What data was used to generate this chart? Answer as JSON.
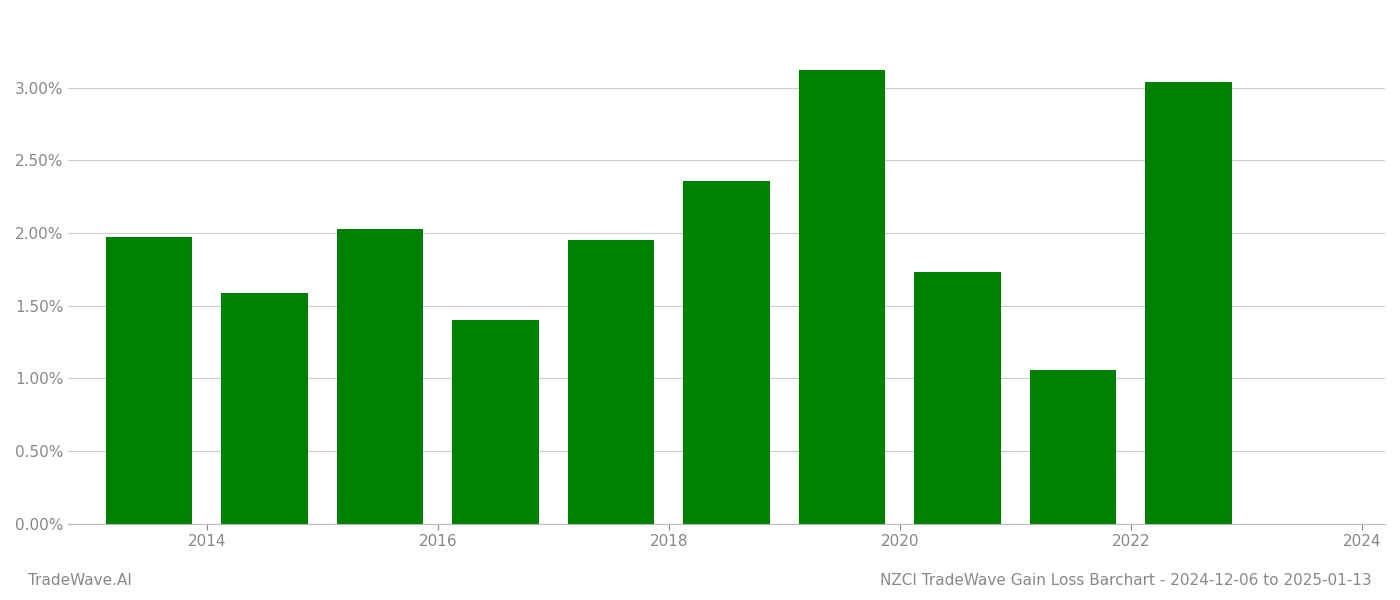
{
  "years": [
    2014,
    2015,
    2016,
    2017,
    2018,
    2019,
    2020,
    2021,
    2022,
    2023
  ],
  "values": [
    0.0197,
    0.0159,
    0.0203,
    0.014,
    0.0195,
    0.0236,
    0.0312,
    0.0173,
    0.0106,
    0.0304
  ],
  "bar_color": "#008000",
  "title": "NZCI TradeWave Gain Loss Barchart - 2024-12-06 to 2025-01-13",
  "watermark_left": "TradeWave.AI",
  "ylim_min": 0.0,
  "ylim_max": 0.035,
  "ytick_values": [
    0.0,
    0.005,
    0.01,
    0.015,
    0.02,
    0.025,
    0.03
  ],
  "xtick_positions": [
    2014.5,
    2016.5,
    2018.5,
    2020.5,
    2022.5,
    2024.5
  ],
  "xtick_labels": [
    "2014",
    "2016",
    "2018",
    "2020",
    "2022",
    "2024"
  ],
  "xlim_min": 2013.3,
  "xlim_max": 2024.7,
  "background_color": "#ffffff",
  "grid_color": "#cccccc",
  "axis_label_color": "#888888",
  "title_color": "#888888",
  "watermark_color": "#888888",
  "bar_width": 0.75,
  "title_fontsize": 11,
  "tick_fontsize": 11,
  "watermark_fontsize": 11
}
